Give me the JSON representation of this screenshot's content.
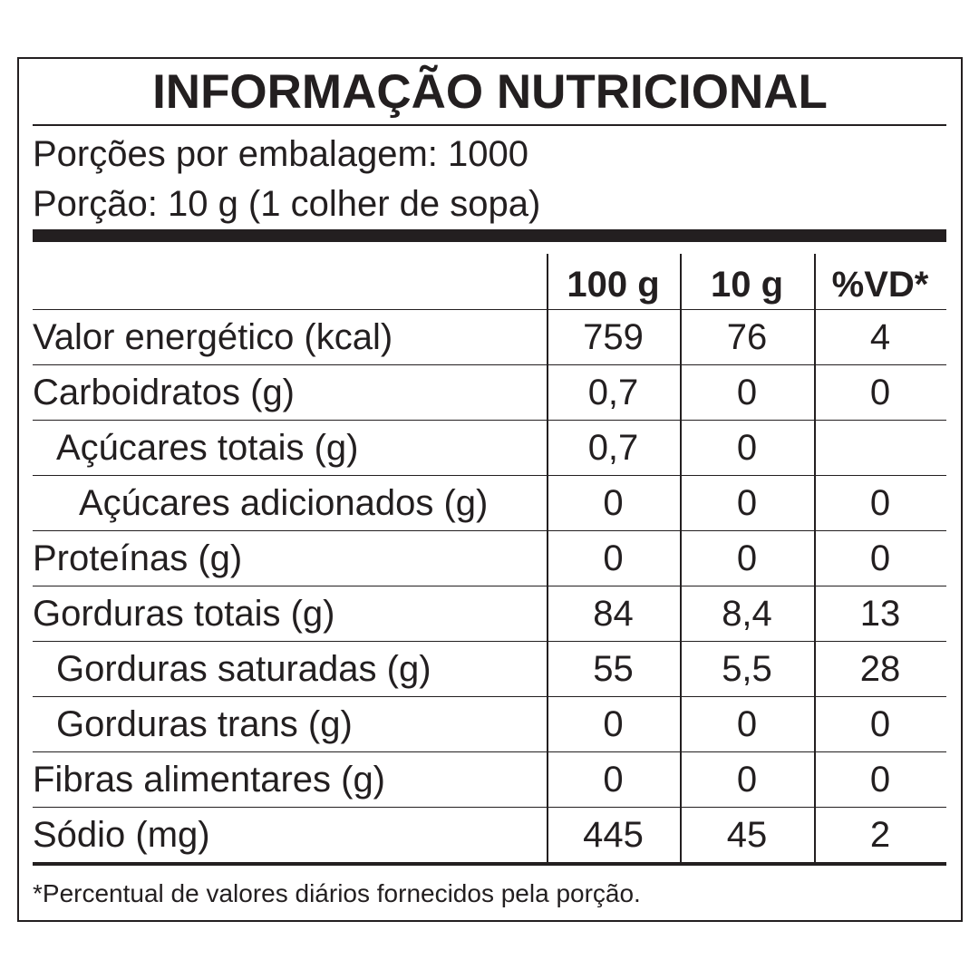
{
  "title": "INFORMAÇÃO NUTRICIONAL",
  "servings_per_package": "Porções por embalagem: 1000",
  "serving_size": "Porção: 10 g (1 colher de sopa)",
  "columns": [
    "100 g",
    "10 g",
    "%VD*"
  ],
  "rows": [
    {
      "label": "Valor energético (kcal)",
      "indent": 0,
      "v100": "759",
      "vportion": "76",
      "vd": "4"
    },
    {
      "label": "Carboidratos (g)",
      "indent": 0,
      "v100": "0,7",
      "vportion": "0",
      "vd": "0"
    },
    {
      "label": "Açúcares totais (g)",
      "indent": 1,
      "v100": "0,7",
      "vportion": "0",
      "vd": ""
    },
    {
      "label": "Açúcares adicionados (g)",
      "indent": 2,
      "v100": "0",
      "vportion": "0",
      "vd": "0"
    },
    {
      "label": "Proteínas (g)",
      "indent": 0,
      "v100": "0",
      "vportion": "0",
      "vd": "0"
    },
    {
      "label": "Gorduras totais (g)",
      "indent": 0,
      "v100": "84",
      "vportion": "8,4",
      "vd": "13"
    },
    {
      "label": "Gorduras saturadas (g)",
      "indent": 1,
      "v100": "55",
      "vportion": "5,5",
      "vd": "28"
    },
    {
      "label": "Gorduras trans (g)",
      "indent": 1,
      "v100": "0",
      "vportion": "0",
      "vd": "0"
    },
    {
      "label": "Fibras alimentares (g)",
      "indent": 0,
      "v100": "0",
      "vportion": "0",
      "vd": "0"
    },
    {
      "label": "Sódio (mg)",
      "indent": 0,
      "v100": "445",
      "vportion": "45",
      "vd": "2"
    }
  ],
  "footnote": "*Percentual de valores diários fornecidos pela porção."
}
